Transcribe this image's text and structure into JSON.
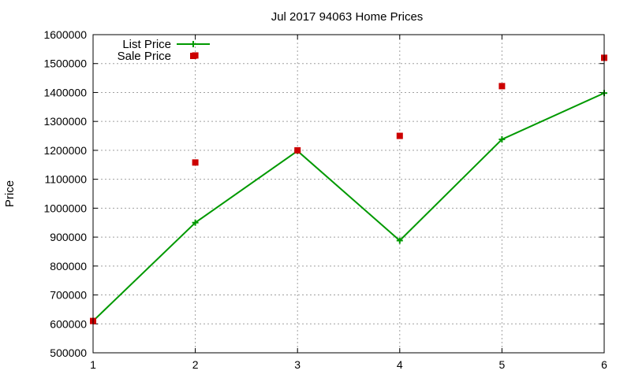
{
  "chart_data": {
    "type": "line",
    "title": "Jul 2017 94063 Home Prices",
    "xlabel": "",
    "ylabel": "Price",
    "x": [
      1,
      2,
      3,
      4,
      5,
      6
    ],
    "xlim": [
      1,
      6
    ],
    "ylim": [
      500000,
      1600000
    ],
    "yticks": [
      500000,
      600000,
      700000,
      800000,
      900000,
      1000000,
      1100000,
      1200000,
      1300000,
      1400000,
      1500000,
      1600000
    ],
    "xticks": [
      1,
      2,
      3,
      4,
      5,
      6
    ],
    "grid": true,
    "legend_position": "top-left",
    "series": [
      {
        "name": "List Price",
        "style": "line-with-plus-markers",
        "color": "#009900",
        "points": [
          {
            "x": 1,
            "y": 610000
          },
          {
            "x": 2,
            "y": 950000
          },
          {
            "x": 3,
            "y": 1198000
          },
          {
            "x": 4,
            "y": 888000
          },
          {
            "x": 5,
            "y": 1238000
          },
          {
            "x": 6,
            "y": 1398000
          }
        ]
      },
      {
        "name": "Sale Price",
        "style": "square-markers",
        "color": "#cc0000",
        "points": [
          {
            "x": 1,
            "y": 610000
          },
          {
            "x": 2,
            "y": 1158000
          },
          {
            "x": 2,
            "y": 1528000
          },
          {
            "x": 3,
            "y": 1200000
          },
          {
            "x": 4,
            "y": 1250000
          },
          {
            "x": 5,
            "y": 1422000
          },
          {
            "x": 6,
            "y": 1520000
          }
        ]
      }
    ]
  }
}
